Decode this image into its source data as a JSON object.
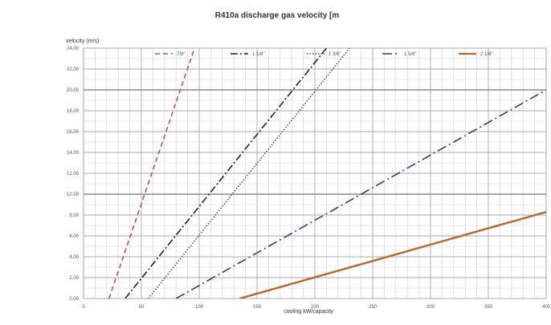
{
  "chart_data": {
    "type": "line",
    "title": "R410a discharge gas velocity [m",
    "xlabel": "cooling kW/capacity",
    "ylabel": "velocity (m/s)",
    "xlim": [
      0,
      400
    ],
    "ylim": [
      0,
      24
    ],
    "x_ticks": [
      0,
      50,
      100,
      150,
      200,
      250,
      300,
      350,
      400
    ],
    "y_ticks": [
      0,
      2,
      4,
      6,
      8,
      10,
      12,
      14,
      16,
      18,
      20,
      22,
      24
    ],
    "x_tick_labels": [
      "0",
      "50",
      "100",
      "150",
      "200",
      "250",
      "300",
      "350",
      "400"
    ],
    "y_tick_labels": [
      "0.00",
      "2.00",
      "4.00",
      "6.00",
      "8.00",
      "10.00",
      "12.00",
      "14.00",
      "16.00",
      "18.00",
      "20.00",
      "22.00",
      "24.00"
    ],
    "grid": true,
    "legend_position": "top",
    "series": [
      {
        "name": "7/8\"",
        "x": [
          22,
          96
        ],
        "y": [
          0,
          24
        ],
        "color": "#c0504d",
        "dash": "6,4"
      },
      {
        "name": "1 1/8\"",
        "x": [
          36,
          210
        ],
        "y": [
          0,
          24
        ],
        "color": "#222222",
        "dash": "9,3,2,3"
      },
      {
        "name": "1 3/8\"",
        "x": [
          56,
          230
        ],
        "y": [
          0,
          24
        ],
        "color": "#555555",
        "dash": "1.5,2"
      },
      {
        "name": "1 5/8\"",
        "x": [
          80,
          400
        ],
        "y": [
          0,
          20
        ],
        "color": "#2f3f7a",
        "dash": "12,4,2,4"
      },
      {
        "name": "2 1/8\"",
        "x": [
          135,
          400
        ],
        "y": [
          0,
          8.3
        ],
        "color": "#b8662a",
        "dash": ""
      }
    ]
  }
}
